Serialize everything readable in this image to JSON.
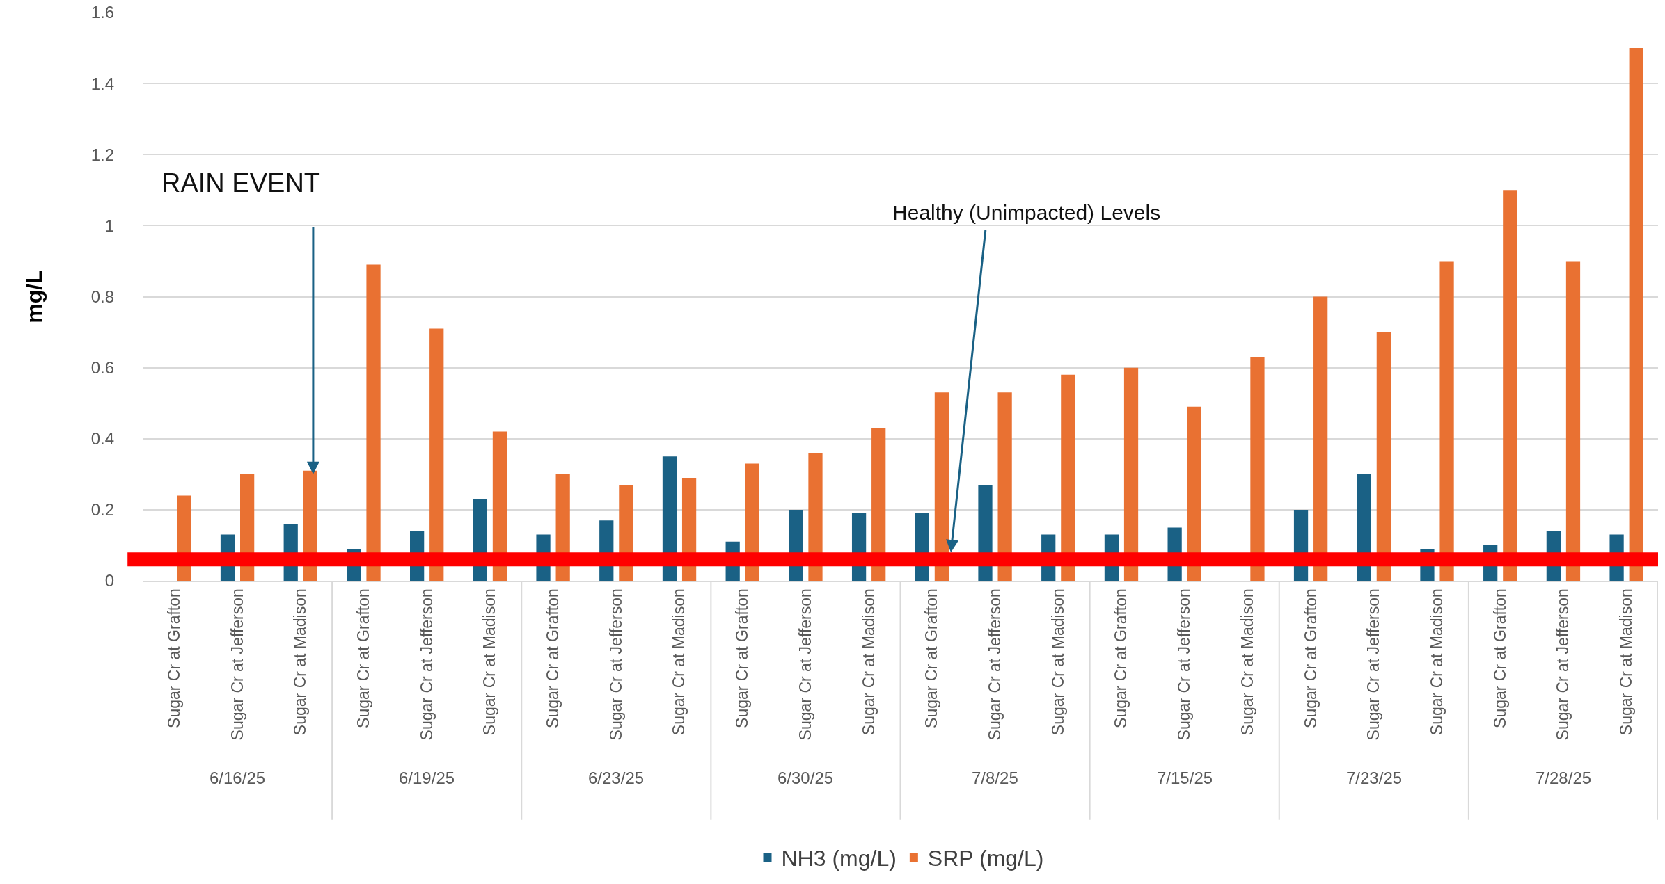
{
  "chart_data": {
    "type": "bar",
    "ylabel": "mg/L",
    "categories": [
      "Sugar Cr at Grafton",
      "Sugar Cr at Jefferson",
      "Sugar Cr at Madison",
      "Sugar Cr at Grafton",
      "Sugar Cr at Jefferson",
      "Sugar Cr at Madison",
      "Sugar Cr at Grafton",
      "Sugar Cr at Jefferson",
      "Sugar Cr at Madison",
      "Sugar Cr at Grafton",
      "Sugar Cr at Jefferson",
      "Sugar Cr at Madison",
      "Sugar Cr at Grafton",
      "Sugar Cr at Jefferson",
      "Sugar Cr at Madison",
      "Sugar Cr at Grafton",
      "Sugar Cr at Jefferson",
      "Sugar Cr at Madison",
      "Sugar Cr at Grafton",
      "Sugar Cr at Jefferson",
      "Sugar Cr at Madison",
      "Sugar Cr at Grafton",
      "Sugar Cr at Jefferson",
      "Sugar Cr at Madison"
    ],
    "series": [
      {
        "name": "NH3 (mg/L)",
        "color": "#1a6185",
        "values": [
          null,
          0.13,
          0.16,
          0.09,
          0.14,
          0.23,
          0.13,
          0.17,
          0.35,
          0.11,
          0.2,
          0.19,
          0.19,
          0.27,
          0.13,
          0.13,
          0.15,
          null,
          0.2,
          0.3,
          0.09,
          0.1,
          0.14,
          0.13
        ]
      },
      {
        "name": "SRP (mg/L)",
        "color": "#e97132",
        "values": [
          0.24,
          0.3,
          0.31,
          0.89,
          0.71,
          0.42,
          0.3,
          0.27,
          0.29,
          0.33,
          0.36,
          0.43,
          0.53,
          0.53,
          0.58,
          0.6,
          0.49,
          0.63,
          0.8,
          0.7,
          0.9,
          1.1,
          0.9,
          1.5
        ]
      }
    ],
    "ylim": [
      0,
      1.6
    ],
    "yticks": [
      0,
      0.2,
      0.4,
      0.6,
      0.8,
      1,
      1.2,
      1.4,
      1.6
    ],
    "grid": "y",
    "legend": "bottom",
    "ref_lines": [
      {
        "axis": "y",
        "value": 0.06,
        "label": "Healthy (Unimpacted) Levels",
        "color": "#ff0000"
      }
    ],
    "annotations": [
      "RAIN EVENT",
      "6/16/25",
      "6/19/25",
      "6/23/25",
      "6/30/25",
      "7/8/25",
      "7/15/25",
      "7/23/25",
      "7/28/25"
    ]
  }
}
